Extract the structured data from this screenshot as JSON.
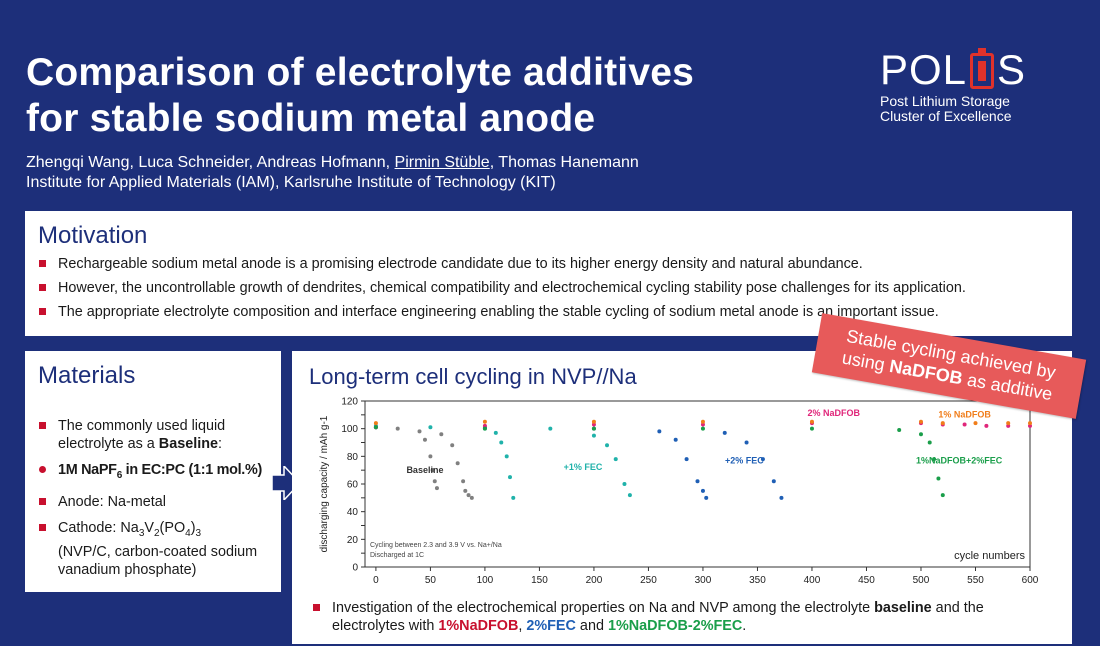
{
  "header": {
    "title_line1": "Comparison of electrolyte additives",
    "title_line2": "for stable sodium metal anode",
    "authors_before": "Zhengqi Wang, Luca Schneider, Andreas Hofmann, ",
    "authors_underlined": "Pirmin Stüble",
    "authors_after": ", Thomas Hanemann",
    "affiliation": "Institute for Applied Materials (IAM), Karlsruhe Institute of Technology (KIT)"
  },
  "logo": {
    "word_left": "POL",
    "word_right": "S",
    "line1": "Post Lithium Storage",
    "line2": "Cluster of Excellence"
  },
  "motivation": {
    "title": "Motivation",
    "bullets": [
      "Rechargeable sodium metal anode is a promising electrode candidate due to its higher energy density and natural abundance.",
      "However, the uncontrollable growth of dendrites, chemical compatibility and electrochemical cycling stability pose challenges for its application.",
      "The appropriate electrolyte composition and interface engineering enabling the stable cycling of sodium metal anode is an important issue."
    ]
  },
  "materials": {
    "title": "Materials",
    "b1_text": "The commonly used liquid electrolyte as a ",
    "b1_bold": "Baseline",
    "b1_end": ":",
    "b2_a": "1M NaPF",
    "b2_sub": "6",
    "b2_b": " in EC:PC (1:1 mol.%)",
    "b3": "Anode: Na-metal",
    "b4_a": "Cathode: Na",
    "b4_s1": "3",
    "b4_b": "V",
    "b4_s2": "2",
    "b4_c": "(PO",
    "b4_s3": "4",
    "b4_d": ")",
    "b4_s4": "3",
    "b4_e": "(NVP/C, carbon-coated sodium vanadium phosphate)"
  },
  "cycling": {
    "title": "Long-term cell cycling in NVP//Na",
    "badge_line1": "Stable cycling achieved by",
    "badge_line2a": "using ",
    "badge_line2b": "NaDFOB",
    "badge_line2c": " as additive",
    "note_a": "Investigation of the electrochemical properties on Na and NVP among the electrolyte ",
    "note_bold": "baseline",
    "note_b": " and the electrolytes with ",
    "note_red": "1%NaDFOB",
    "note_c": ", ",
    "note_blue": "2%FEC",
    "note_d": " and ",
    "note_green": "1%NaDFOB-2%FEC",
    "note_e": "."
  },
  "chart_data": {
    "type": "scatter",
    "xlabel": "cycle numbers",
    "ylabel": "discharging capacity / mAh g-1",
    "xlim": [
      -10,
      600
    ],
    "ylim": [
      0,
      120
    ],
    "xticks": [
      0,
      50,
      100,
      150,
      200,
      250,
      300,
      350,
      400,
      450,
      500,
      550,
      600
    ],
    "yticks": [
      0,
      10,
      20,
      30,
      40,
      50,
      60,
      70,
      80,
      90,
      100,
      110,
      120
    ],
    "annotation_line1": "Cycling between 2.3 and 3.9 V vs. Na+/Na",
    "annotation_line2": "Discharged at 1C",
    "series": [
      {
        "name": "Baseline",
        "color": "#808080",
        "x": [
          0,
          20,
          40,
          45,
          50,
          52,
          54,
          56,
          60,
          70,
          75,
          80,
          82,
          85,
          88
        ],
        "y": [
          101,
          100,
          98,
          92,
          80,
          70,
          62,
          57,
          96,
          88,
          75,
          62,
          55,
          52,
          50
        ]
      },
      {
        "name": "+1% FEC",
        "color": "#20b2aa",
        "x": [
          0,
          50,
          100,
          110,
          115,
          120,
          123,
          126,
          160,
          200,
          212,
          220,
          228,
          233
        ],
        "y": [
          102,
          101,
          100,
          97,
          90,
          80,
          65,
          50,
          100,
          95,
          88,
          78,
          60,
          52
        ]
      },
      {
        "name": "+2% FEC",
        "color": "#1f5fb5",
        "x": [
          0,
          100,
          200,
          260,
          275,
          285,
          295,
          300,
          303,
          320,
          340,
          355,
          365,
          372
        ],
        "y": [
          101,
          101,
          100,
          98,
          92,
          78,
          62,
          55,
          50,
          97,
          90,
          78,
          62,
          50
        ]
      },
      {
        "name": "2% NaDFOB",
        "color": "#e0267a",
        "x": [
          0,
          100,
          200,
          300,
          400,
          500,
          520,
          540,
          560,
          580,
          600
        ],
        "y": [
          101,
          102,
          103,
          103,
          104,
          104,
          103,
          103,
          102,
          102,
          102
        ]
      },
      {
        "name": "1% NaDFOB",
        "color": "#f07d1a",
        "x": [
          0,
          100,
          200,
          300,
          400,
          500,
          520,
          550,
          580,
          600
        ],
        "y": [
          104,
          105,
          105,
          105,
          105,
          105,
          104,
          104,
          104,
          104
        ]
      },
      {
        "name": "1%NaDFOB+2%FEC",
        "color": "#1a9e4a",
        "x": [
          0,
          100,
          200,
          300,
          400,
          480,
          500,
          508,
          512,
          516,
          520
        ],
        "y": [
          101,
          100,
          100,
          100,
          100,
          99,
          96,
          90,
          78,
          64,
          52
        ]
      }
    ]
  }
}
